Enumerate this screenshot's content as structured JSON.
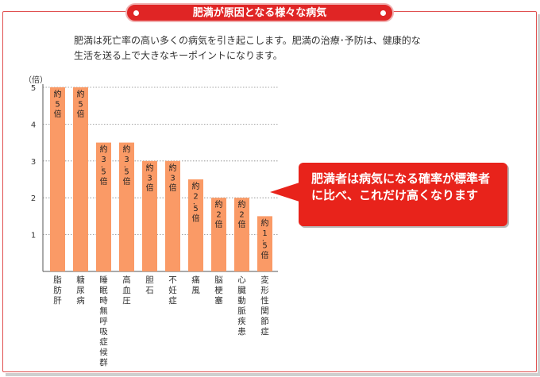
{
  "header": {
    "title": "肥満が原因となる様々な病気"
  },
  "intro": {
    "line1": "肥満は死亡率の高い多くの病気を引き起こします。肥満の治療･予防は、健康的な",
    "line2": "生活を送る上で大きなキーポイントになります。"
  },
  "callout": {
    "text": "肥満者は病気になる確率が標準者に比べ、これだけ高くなります"
  },
  "colors": {
    "bar": "#fa9a66",
    "accent": "#e8231b",
    "frame": "#e05050"
  },
  "chart_data": {
    "type": "bar",
    "ylabel": "（倍）",
    "ylim": [
      0,
      5
    ],
    "yticks": [
      "1",
      "2",
      "3",
      "4",
      "5"
    ],
    "grid": "dotted horizontal",
    "categories": [
      "脂肪肝",
      "糖尿病",
      "睡眠時無呼吸症候群",
      "高血圧",
      "胆石",
      "不妊症",
      "痛風",
      "脳梗塞",
      "心臓動脈疾患",
      "変形性関節症"
    ],
    "values": [
      5,
      5,
      3.5,
      3.5,
      3,
      3,
      2.5,
      2,
      2,
      1.5
    ],
    "data_labels": [
      [
        "約",
        "5",
        "倍"
      ],
      [
        "約",
        "5",
        "倍"
      ],
      [
        "約",
        "3",
        "．",
        "5",
        "倍"
      ],
      [
        "約",
        "3",
        "．",
        "5",
        "倍"
      ],
      [
        "約",
        "3",
        "倍"
      ],
      [
        "約",
        "3",
        "倍"
      ],
      [
        "約",
        "2",
        "．",
        "5",
        "倍"
      ],
      [
        "約",
        "2",
        "倍"
      ],
      [
        "約",
        "2",
        "倍"
      ],
      [
        "約",
        "1",
        "．",
        "5",
        "倍"
      ]
    ]
  }
}
